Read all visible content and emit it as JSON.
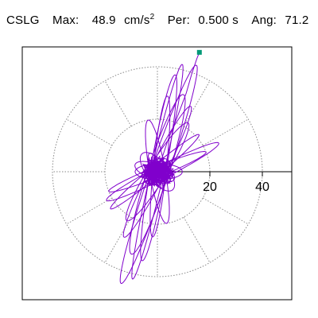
{
  "header": {
    "station": "CSLG",
    "max_label": "Max:",
    "max_value": "48.9",
    "max_unit": "cm/s",
    "max_unit_exp": "2",
    "per_label": "Per:",
    "per_value": "0.500 s",
    "ang_label": "Ang:",
    "ang_value": "71.2"
  },
  "colors": {
    "trace": "#8000cc",
    "end_marker": "#009977",
    "grid": "#888888",
    "frame": "#000000"
  },
  "chart_data": {
    "type": "line",
    "title": "",
    "xlabel": "",
    "ylabel": "",
    "polar_grid": {
      "rings": [
        20,
        40
      ],
      "spokes_every_deg": 30
    },
    "tick_labels": [
      "20",
      "40"
    ],
    "xlim": [
      -43,
      52
    ],
    "ylim": [
      -48,
      48
    ],
    "loops": [
      {
        "angle_deg": 71,
        "semi_major": 44,
        "semi_minor": 3.5,
        "center_x": 0.5,
        "center_y": -1
      },
      {
        "angle_deg": 77,
        "semi_major": 42,
        "semi_minor": 2.5,
        "center_x": 0,
        "center_y": 0
      },
      {
        "angle_deg": 80,
        "semi_major": 36,
        "semi_minor": 3,
        "center_x": 0.5,
        "center_y": 1.5
      },
      {
        "angle_deg": 72,
        "semi_major": 32,
        "semi_minor": 4,
        "center_x": 0,
        "center_y": -1
      },
      {
        "angle_deg": 84,
        "semi_major": 27,
        "semi_minor": 2.5,
        "center_x": 1,
        "center_y": 2
      },
      {
        "angle_deg": 63,
        "semi_major": 28,
        "semi_minor": 3,
        "center_x": 0,
        "center_y": 0
      },
      {
        "angle_deg": 58,
        "semi_major": 22,
        "semi_minor": 3.5,
        "center_x": 0,
        "center_y": 0
      },
      {
        "angle_deg": 27,
        "semi_major": 24,
        "semi_minor": 2.5,
        "center_x": 2,
        "center_y": 0
      },
      {
        "angle_deg": 22,
        "semi_major": 20,
        "semi_minor": 2,
        "center_x": 0,
        "center_y": 0
      },
      {
        "angle_deg": 100,
        "semi_major": 20,
        "semi_minor": 3,
        "center_x": 0,
        "center_y": 0
      },
      {
        "angle_deg": 40,
        "semi_major": 22,
        "semi_minor": 2,
        "center_x": -1,
        "center_y": 0
      },
      {
        "angle_deg": 130,
        "semi_major": 9,
        "semi_minor": 4,
        "center_x": 0,
        "center_y": 0
      },
      {
        "angle_deg": 0,
        "semi_major": 9,
        "semi_minor": 3,
        "center_x": 0.5,
        "center_y": 0
      },
      {
        "angle_deg": 160,
        "semi_major": 8,
        "semi_minor": 3,
        "center_x": -1,
        "center_y": 0
      },
      {
        "angle_deg": 45,
        "semi_major": 6,
        "semi_minor": 4,
        "center_x": 0,
        "center_y": 0
      },
      {
        "angle_deg": 110,
        "semi_major": 7,
        "semi_minor": 2,
        "center_x": -0.5,
        "center_y": 0.5
      }
    ],
    "tail": [
      [
        0,
        0
      ],
      [
        4,
        12
      ],
      [
        8,
        22
      ],
      [
        11,
        30
      ],
      [
        13,
        37
      ],
      [
        15,
        43
      ],
      [
        16,
        45.5
      ]
    ],
    "end_point": [
      16,
      45.5
    ]
  }
}
